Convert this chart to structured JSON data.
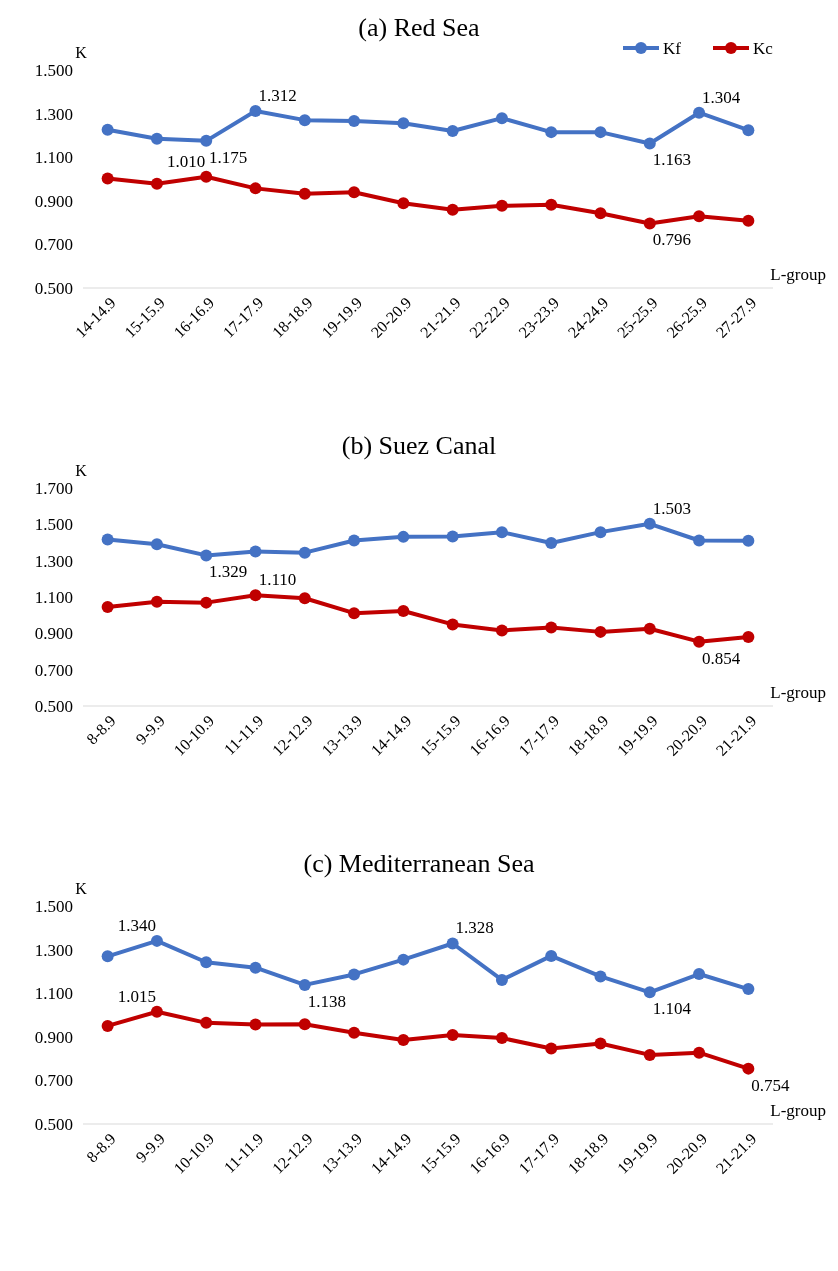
{
  "chart_data": [
    {
      "type": "line",
      "title": "(a) Red Sea",
      "xlabel": "L-group",
      "ylabel": "K",
      "legend": "top right",
      "marker": "circle",
      "line_style": "solid",
      "grid": false,
      "categories": [
        "14-14.9",
        "15-15.9",
        "16-16.9",
        "17-17.9",
        "18-18.9",
        "19-19.9",
        "20-20.9",
        "21-21.9",
        "22-22.9",
        "23-23.9",
        "24-24.9",
        "25-25.9",
        "26-25.9",
        "27-27.9"
      ],
      "ylim": [
        0.5,
        1.5
      ],
      "yticks": [
        {
          "value": 0.5,
          "label": "0.500"
        },
        {
          "value": 0.7,
          "label": "0.700"
        },
        {
          "value": 0.9,
          "label": "0.900"
        },
        {
          "value": 1.1,
          "label": "1.100"
        },
        {
          "value": 1.3,
          "label": "1.300"
        },
        {
          "value": 1.5,
          "label": "1.500"
        }
      ],
      "series": [
        {
          "name": "Kf",
          "color": "#4472c4",
          "values": [
            1.226,
            1.185,
            1.175,
            1.312,
            1.27,
            1.266,
            1.256,
            1.22,
            1.279,
            1.215,
            1.215,
            1.163,
            1.304,
            1.224
          ],
          "value_labels": [
            null,
            null,
            "1.175",
            "1.312",
            null,
            null,
            null,
            null,
            null,
            null,
            null,
            "1.163",
            "1.304",
            null
          ]
        },
        {
          "name": "Kc",
          "color": "#c00000",
          "values": [
            1.002,
            0.978,
            1.01,
            0.957,
            0.932,
            0.939,
            0.889,
            0.859,
            0.877,
            0.882,
            0.843,
            0.796,
            0.829,
            0.808
          ],
          "value_labels": [
            null,
            null,
            "1.010",
            null,
            null,
            null,
            null,
            null,
            null,
            null,
            null,
            "0.796",
            null,
            null
          ]
        }
      ]
    },
    {
      "type": "line",
      "title": "(b) Suez Canal",
      "xlabel": "L-group",
      "ylabel": "K",
      "legend": false,
      "marker": "circle",
      "line_style": "solid",
      "grid": false,
      "categories": [
        "8-8.9",
        "9-9.9",
        "10-10.9",
        "11-11.9",
        "12-12.9",
        "13-13.9",
        "14-14.9",
        "15-15.9",
        "16-16.9",
        "17-17.9",
        "18-18.9",
        "19-19.9",
        "20-20.9",
        "21-21.9"
      ],
      "ylim": [
        0.5,
        1.7
      ],
      "yticks": [
        {
          "value": 0.5,
          "label": "0.500"
        },
        {
          "value": 0.7,
          "label": "0.700"
        },
        {
          "value": 0.9,
          "label": "0.900"
        },
        {
          "value": 1.1,
          "label": "1.100"
        },
        {
          "value": 1.3,
          "label": "1.300"
        },
        {
          "value": 1.5,
          "label": "1.500"
        },
        {
          "value": 1.7,
          "label": "1.700"
        }
      ],
      "series": [
        {
          "color": "#4472c4",
          "values": [
            1.416,
            1.39,
            1.329,
            1.351,
            1.344,
            1.411,
            1.431,
            1.433,
            1.457,
            1.397,
            1.457,
            1.503,
            1.411,
            1.409
          ],
          "value_labels": [
            null,
            null,
            "1.329",
            null,
            null,
            null,
            null,
            null,
            null,
            null,
            null,
            "1.503",
            null,
            null
          ]
        },
        {
          "color": "#c00000",
          "values": [
            1.045,
            1.074,
            1.069,
            1.11,
            1.093,
            1.011,
            1.023,
            0.949,
            0.916,
            0.932,
            0.908,
            0.925,
            0.854,
            0.88
          ],
          "value_labels": [
            null,
            null,
            null,
            "1.110",
            null,
            null,
            null,
            null,
            null,
            null,
            null,
            null,
            "0.854",
            null
          ]
        }
      ]
    },
    {
      "type": "line",
      "title": "(c) Mediterranean Sea",
      "xlabel": "L-group",
      "ylabel": "K",
      "legend": false,
      "marker": "circle",
      "line_style": "solid",
      "grid": false,
      "categories": [
        "8-8.9",
        "9-9.9",
        "10-10.9",
        "11-11.9",
        "12-12.9",
        "13-13.9",
        "14-14.9",
        "15-15.9",
        "16-16.9",
        "17-17.9",
        "18-18.9",
        "19-19.9",
        "20-20.9",
        "21-21.9"
      ],
      "ylim": [
        0.5,
        1.5
      ],
      "yticks": [
        {
          "value": 0.5,
          "label": "0.500"
        },
        {
          "value": 0.7,
          "label": "0.700"
        },
        {
          "value": 0.9,
          "label": "0.900"
        },
        {
          "value": 1.1,
          "label": "1.100"
        },
        {
          "value": 1.3,
          "label": "1.300"
        },
        {
          "value": 1.5,
          "label": "1.500"
        }
      ],
      "series": [
        {
          "color": "#4472c4",
          "values": [
            1.269,
            1.34,
            1.242,
            1.217,
            1.138,
            1.186,
            1.254,
            1.328,
            1.161,
            1.271,
            1.177,
            1.104,
            1.188,
            1.119
          ],
          "value_labels": [
            null,
            "1.340",
            null,
            null,
            "1.138",
            null,
            null,
            "1.328",
            null,
            null,
            null,
            "1.104",
            null,
            null
          ]
        },
        {
          "color": "#c00000",
          "values": [
            0.95,
            1.015,
            0.964,
            0.956,
            0.958,
            0.919,
            0.885,
            0.908,
            0.894,
            0.846,
            0.869,
            0.817,
            0.827,
            0.754
          ],
          "value_labels": [
            null,
            "1.015",
            null,
            null,
            null,
            null,
            null,
            null,
            null,
            null,
            null,
            null,
            null,
            "0.754"
          ]
        }
      ]
    }
  ]
}
